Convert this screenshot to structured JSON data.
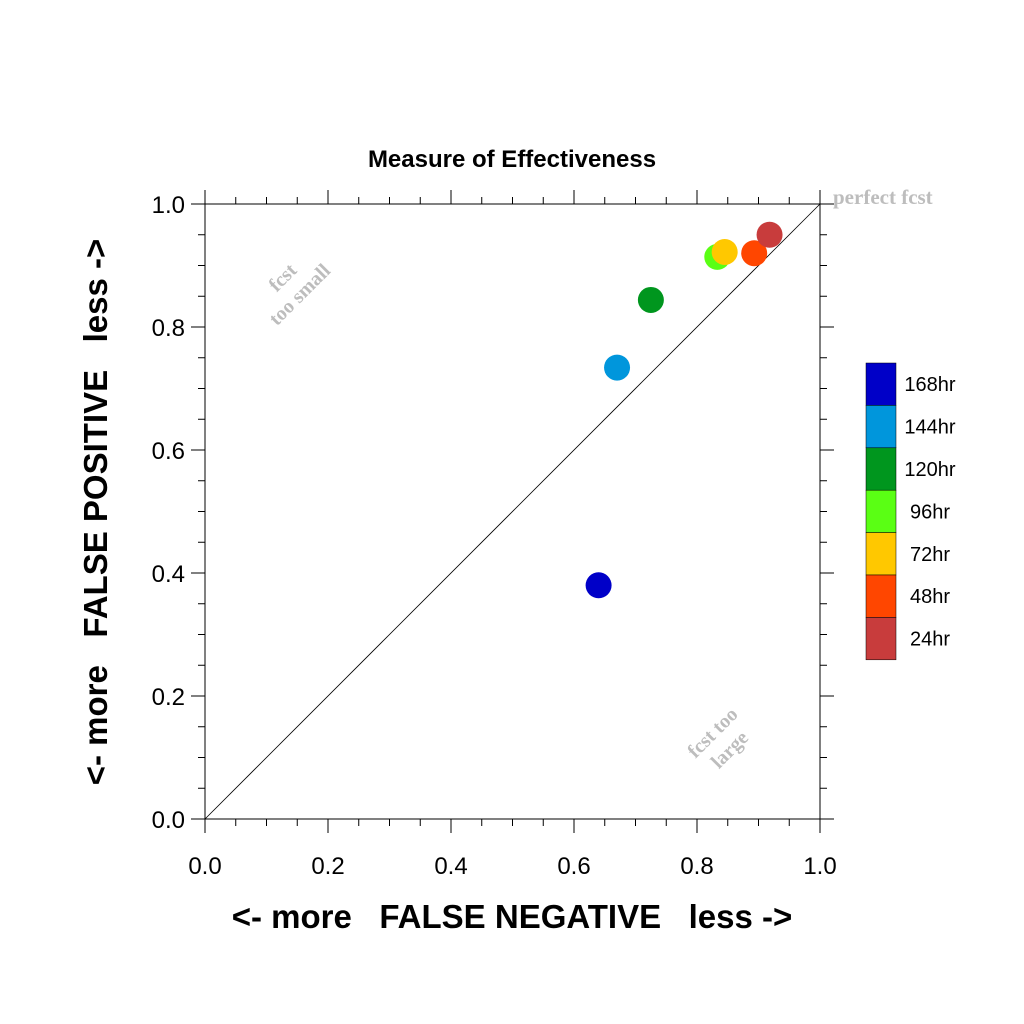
{
  "chart_data": {
    "type": "scatter",
    "title": "Measure of Effectiveness",
    "xlabel": "<- more   FALSE NEGATIVE   less ->",
    "ylabel": "<- more   FALSE POSITIVE   less ->",
    "xlim": [
      0.0,
      1.0
    ],
    "ylim": [
      0.0,
      1.0
    ],
    "xticks": [
      "0.0",
      "0.2",
      "0.4",
      "0.6",
      "0.8",
      "1.0"
    ],
    "yticks": [
      "0.0",
      "0.2",
      "0.4",
      "0.6",
      "0.8",
      "1.0"
    ],
    "grid": false,
    "legend_position": "right",
    "reference_line": {
      "from": [
        0.0,
        0.0
      ],
      "to": [
        1.0,
        1.0
      ],
      "label": "perfect fcst"
    },
    "annotations": {
      "upper_left": [
        "fcst",
        "too small"
      ],
      "lower_right": [
        "fcst too",
        "large"
      ]
    },
    "points": [
      {
        "label": "168hr",
        "x": 0.64,
        "y": 0.38,
        "color": "#0000c8"
      },
      {
        "label": "144hr",
        "x": 0.67,
        "y": 0.734,
        "color": "#0096dc"
      },
      {
        "label": "120hr",
        "x": 0.725,
        "y": 0.844,
        "color": "#00961e"
      },
      {
        "label": "96hr",
        "x": 0.833,
        "y": 0.914,
        "color": "#5aff14"
      },
      {
        "label": "72hr",
        "x": 0.845,
        "y": 0.922,
        "color": "#ffc800"
      },
      {
        "label": "48hr",
        "x": 0.893,
        "y": 0.92,
        "color": "#ff4600"
      },
      {
        "label": "24hr",
        "x": 0.918,
        "y": 0.95,
        "color": "#c83c3c"
      }
    ],
    "legend": [
      {
        "label": "168hr",
        "color": "#0000c8"
      },
      {
        "label": "144hr",
        "color": "#0096dc"
      },
      {
        "label": "120hr",
        "color": "#00961e"
      },
      {
        "label": "96hr",
        "color": "#5aff14"
      },
      {
        "label": "72hr",
        "color": "#ffc800"
      },
      {
        "label": "48hr",
        "color": "#ff4600"
      },
      {
        "label": "24hr",
        "color": "#c83c3c"
      }
    ]
  }
}
